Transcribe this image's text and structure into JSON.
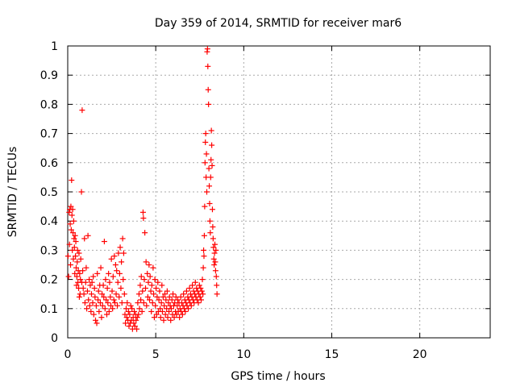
{
  "chart_data": {
    "type": "scatter",
    "title": "Day 359 of 2014, SRMTID for receiver mar6",
    "xlabel": "GPS time / hours",
    "ylabel": "SRMTID / TECUs",
    "xlim": [
      0,
      24
    ],
    "ylim": [
      0,
      1
    ],
    "xticks": [
      0,
      5,
      10,
      15,
      20
    ],
    "yticks": [
      0,
      0.1,
      0.2,
      0.3,
      0.4,
      0.5,
      0.6,
      0.7,
      0.8,
      0.9,
      1
    ],
    "grid": true,
    "marker": "+",
    "color": "#ff0000",
    "series": [
      {
        "name": "SRMTID",
        "points": [
          [
            0.02,
            0.28
          ],
          [
            0.05,
            0.21
          ],
          [
            0.08,
            0.43
          ],
          [
            0.1,
            0.32
          ],
          [
            0.12,
            0.44
          ],
          [
            0.14,
            0.39
          ],
          [
            0.16,
            0.25
          ],
          [
            0.18,
            0.45
          ],
          [
            0.2,
            0.37
          ],
          [
            0.22,
            0.54
          ],
          [
            0.24,
            0.42
          ],
          [
            0.26,
            0.3
          ],
          [
            0.28,
            0.44
          ],
          [
            0.3,
            0.36
          ],
          [
            0.32,
            0.27
          ],
          [
            0.34,
            0.4
          ],
          [
            0.36,
            0.34
          ],
          [
            0.38,
            0.31
          ],
          [
            0.4,
            0.22
          ],
          [
            0.42,
            0.35
          ],
          [
            0.44,
            0.28
          ],
          [
            0.46,
            0.33
          ],
          [
            0.48,
            0.24
          ],
          [
            0.5,
            0.18
          ],
          [
            0.52,
            0.21
          ],
          [
            0.54,
            0.26
          ],
          [
            0.56,
            0.3
          ],
          [
            0.58,
            0.19
          ],
          [
            0.6,
            0.23
          ],
          [
            0.62,
            0.17
          ],
          [
            0.64,
            0.29
          ],
          [
            0.66,
            0.14
          ],
          [
            0.68,
            0.22
          ],
          [
            0.7,
            0.15
          ],
          [
            0.72,
            0.2
          ],
          [
            0.74,
            0.27
          ],
          [
            0.78,
            0.5
          ],
          [
            0.8,
            0.19
          ],
          [
            0.82,
            0.78
          ],
          [
            0.85,
            0.23
          ],
          [
            0.88,
            0.17
          ],
          [
            0.92,
            0.15
          ],
          [
            0.95,
            0.34
          ],
          [
            0.98,
            0.12
          ],
          [
            1.02,
            0.19
          ],
          [
            1.05,
            0.24
          ],
          [
            1.08,
            0.1
          ],
          [
            1.12,
            0.16
          ],
          [
            1.15,
            0.35
          ],
          [
            1.18,
            0.13
          ],
          [
            1.22,
            0.2
          ],
          [
            1.25,
            0.11
          ],
          [
            1.28,
            0.18
          ],
          [
            1.32,
            0.09
          ],
          [
            1.35,
            0.15
          ],
          [
            1.38,
            0.19
          ],
          [
            1.42,
            0.12
          ],
          [
            1.45,
            0.21
          ],
          [
            1.48,
            0.08
          ],
          [
            1.52,
            0.17
          ],
          [
            1.55,
            0.14
          ],
          [
            1.58,
            0.06
          ],
          [
            1.62,
            0.11
          ],
          [
            1.65,
            0.05
          ],
          [
            1.68,
            0.22
          ],
          [
            1.72,
            0.13
          ],
          [
            1.75,
            0.16
          ],
          [
            1.78,
            0.09
          ],
          [
            1.82,
            0.18
          ],
          [
            1.85,
            0.12
          ],
          [
            1.88,
            0.24
          ],
          [
            1.92,
            0.07
          ],
          [
            1.95,
            0.15
          ],
          [
            1.98,
            0.11
          ],
          [
            2.02,
            0.18
          ],
          [
            2.05,
            0.14
          ],
          [
            2.08,
            0.33
          ],
          [
            2.12,
            0.1
          ],
          [
            2.15,
            0.2
          ],
          [
            2.18,
            0.13
          ],
          [
            2.22,
            0.08
          ],
          [
            2.25,
            0.17
          ],
          [
            2.28,
            0.12
          ],
          [
            2.32,
            0.22
          ],
          [
            2.35,
            0.09
          ],
          [
            2.38,
            0.19
          ],
          [
            2.42,
            0.14
          ],
          [
            2.45,
            0.11
          ],
          [
            2.48,
            0.27
          ],
          [
            2.52,
            0.16
          ],
          [
            2.55,
            0.1
          ],
          [
            2.58,
            0.21
          ],
          [
            2.62,
            0.13
          ],
          [
            2.65,
            0.28
          ],
          [
            2.68,
            0.12
          ],
          [
            2.72,
            0.25
          ],
          [
            2.75,
            0.15
          ],
          [
            2.78,
            0.23
          ],
          [
            2.82,
            0.11
          ],
          [
            2.85,
            0.19
          ],
          [
            2.88,
            0.29
          ],
          [
            2.92,
            0.14
          ],
          [
            2.95,
            0.22
          ],
          [
            2.98,
            0.31
          ],
          [
            3.02,
            0.17
          ],
          [
            3.05,
            0.26
          ],
          [
            3.08,
            0.12
          ],
          [
            3.12,
            0.34
          ],
          [
            3.15,
            0.2
          ],
          [
            3.18,
            0.29
          ],
          [
            3.22,
            0.15
          ],
          [
            3.25,
            0.08
          ],
          [
            3.28,
            0.05
          ],
          [
            3.32,
            0.1
          ],
          [
            3.35,
            0.07
          ],
          [
            3.38,
            0.12
          ],
          [
            3.42,
            0.06
          ],
          [
            3.45,
            0.09
          ],
          [
            3.48,
            0.04
          ],
          [
            3.52,
            0.08
          ],
          [
            3.55,
            0.05
          ],
          [
            3.58,
            0.11
          ],
          [
            3.62,
            0.06
          ],
          [
            3.65,
            0.1
          ],
          [
            3.68,
            0.03
          ],
          [
            3.72,
            0.07
          ],
          [
            3.75,
            0.05
          ],
          [
            3.78,
            0.09
          ],
          [
            3.82,
            0.04
          ],
          [
            3.85,
            0.08
          ],
          [
            3.88,
            0.06
          ],
          [
            3.92,
            0.03
          ],
          [
            3.95,
            0.07
          ],
          [
            3.98,
            0.12
          ],
          [
            4.02,
            0.08
          ],
          [
            4.05,
            0.15
          ],
          [
            4.08,
            0.1
          ],
          [
            4.12,
            0.18
          ],
          [
            4.15,
            0.13
          ],
          [
            4.18,
            0.21
          ],
          [
            4.22,
            0.09
          ],
          [
            4.25,
            0.16
          ],
          [
            4.28,
            0.43
          ],
          [
            4.3,
            0.41
          ],
          [
            4.32,
            0.12
          ],
          [
            4.35,
            0.2
          ],
          [
            4.38,
            0.36
          ],
          [
            4.42,
            0.17
          ],
          [
            4.45,
            0.26
          ],
          [
            4.48,
            0.11
          ],
          [
            4.52,
            0.22
          ],
          [
            4.55,
            0.14
          ],
          [
            4.58,
            0.19
          ],
          [
            4.62,
            0.25
          ],
          [
            4.65,
            0.13
          ],
          [
            4.68,
            0.21
          ],
          [
            4.72,
            0.16
          ],
          [
            4.75,
            0.09
          ],
          [
            4.78,
            0.18
          ],
          [
            4.82,
            0.12
          ],
          [
            4.85,
            0.24
          ],
          [
            4.88,
            0.15
          ],
          [
            4.92,
            0.07
          ],
          [
            4.95,
            0.2
          ],
          [
            4.98,
            0.11
          ],
          [
            5.02,
            0.17
          ],
          [
            5.05,
            0.08
          ],
          [
            5.08,
            0.14
          ],
          [
            5.12,
            0.19
          ],
          [
            5.15,
            0.09
          ],
          [
            5.18,
            0.13
          ],
          [
            5.22,
            0.16
          ],
          [
            5.25,
            0.1
          ],
          [
            5.28,
            0.07
          ],
          [
            5.32,
            0.12
          ],
          [
            5.35,
            0.18
          ],
          [
            5.38,
            0.09
          ],
          [
            5.42,
            0.14
          ],
          [
            5.45,
            0.06
          ],
          [
            5.48,
            0.11
          ],
          [
            5.52,
            0.15
          ],
          [
            5.55,
            0.08
          ],
          [
            5.58,
            0.13
          ],
          [
            5.62,
            0.1
          ],
          [
            5.65,
            0.16
          ],
          [
            5.68,
            0.07
          ],
          [
            5.72,
            0.12
          ],
          [
            5.75,
            0.09
          ],
          [
            5.78,
            0.14
          ],
          [
            5.82,
            0.11
          ],
          [
            5.85,
            0.06
          ],
          [
            5.88,
            0.1
          ],
          [
            5.92,
            0.13
          ],
          [
            5.95,
            0.08
          ],
          [
            5.98,
            0.15
          ],
          [
            6.02,
            0.11
          ],
          [
            6.05,
            0.07
          ],
          [
            6.08,
            0.12
          ],
          [
            6.12,
            0.09
          ],
          [
            6.15,
            0.14
          ],
          [
            6.18,
            0.08
          ],
          [
            6.22,
            0.11
          ],
          [
            6.25,
            0.13
          ],
          [
            6.28,
            0.09
          ],
          [
            6.32,
            0.12
          ],
          [
            6.35,
            0.07
          ],
          [
            6.38,
            0.1
          ],
          [
            6.42,
            0.14
          ],
          [
            6.45,
            0.09
          ],
          [
            6.48,
            0.12
          ],
          [
            6.52,
            0.08
          ],
          [
            6.55,
            0.11
          ],
          [
            6.58,
            0.15
          ],
          [
            6.62,
            0.1
          ],
          [
            6.65,
            0.13
          ],
          [
            6.68,
            0.09
          ],
          [
            6.72,
            0.12
          ],
          [
            6.75,
            0.16
          ],
          [
            6.78,
            0.11
          ],
          [
            6.82,
            0.14
          ],
          [
            6.85,
            0.1
          ],
          [
            6.88,
            0.13
          ],
          [
            6.92,
            0.17
          ],
          [
            6.95,
            0.12
          ],
          [
            6.98,
            0.15
          ],
          [
            7.02,
            0.11
          ],
          [
            7.05,
            0.14
          ],
          [
            7.08,
            0.18
          ],
          [
            7.12,
            0.13
          ],
          [
            7.15,
            0.16
          ],
          [
            7.18,
            0.12
          ],
          [
            7.22,
            0.15
          ],
          [
            7.25,
            0.19
          ],
          [
            7.28,
            0.14
          ],
          [
            7.32,
            0.17
          ],
          [
            7.35,
            0.13
          ],
          [
            7.38,
            0.16
          ],
          [
            7.42,
            0.12
          ],
          [
            7.45,
            0.15
          ],
          [
            7.48,
            0.18
          ],
          [
            7.52,
            0.14
          ],
          [
            7.55,
            0.17
          ],
          [
            7.58,
            0.13
          ],
          [
            7.62,
            0.16
          ],
          [
            7.65,
            0.2
          ],
          [
            7.68,
            0.15
          ],
          [
            7.7,
            0.24
          ],
          [
            7.72,
            0.3
          ],
          [
            7.74,
            0.28
          ],
          [
            7.76,
            0.35
          ],
          [
            7.78,
            0.45
          ],
          [
            7.8,
            0.6
          ],
          [
            7.82,
            0.67
          ],
          [
            7.84,
            0.7
          ],
          [
            7.86,
            0.55
          ],
          [
            7.88,
            0.63
          ],
          [
            7.9,
            0.5
          ],
          [
            7.92,
            0.98
          ],
          [
            7.94,
            0.99
          ],
          [
            7.96,
            0.93
          ],
          [
            7.98,
            0.85
          ],
          [
            8.0,
            0.8
          ],
          [
            8.02,
            0.58
          ],
          [
            8.04,
            0.52
          ],
          [
            8.06,
            0.46
          ],
          [
            8.08,
            0.4
          ],
          [
            8.1,
            0.36
          ],
          [
            8.12,
            0.55
          ],
          [
            8.14,
            0.61
          ],
          [
            8.16,
            0.71
          ],
          [
            8.18,
            0.66
          ],
          [
            8.2,
            0.59
          ],
          [
            8.22,
            0.44
          ],
          [
            8.24,
            0.38
          ],
          [
            8.26,
            0.34
          ],
          [
            8.28,
            0.31
          ],
          [
            8.3,
            0.27
          ],
          [
            8.32,
            0.25
          ],
          [
            8.34,
            0.29
          ],
          [
            8.36,
            0.32
          ],
          [
            8.38,
            0.26
          ],
          [
            8.4,
            0.23
          ],
          [
            8.42,
            0.3
          ],
          [
            8.44,
            0.21
          ],
          [
            8.46,
            0.18
          ],
          [
            8.48,
            0.15
          ]
        ]
      }
    ]
  }
}
